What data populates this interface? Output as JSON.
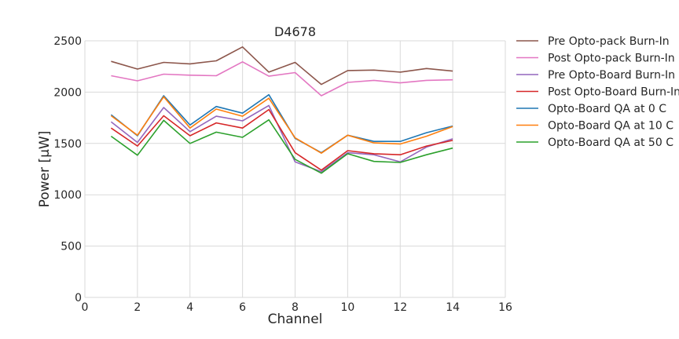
{
  "chart_data": {
    "type": "line",
    "title": "D4678",
    "xlabel": "Channel",
    "ylabel": "Power [μW]",
    "xlim": [
      0,
      16
    ],
    "ylim": [
      0,
      2500
    ],
    "xticks": [
      0,
      2,
      4,
      6,
      8,
      10,
      12,
      14,
      16
    ],
    "yticks": [
      0,
      500,
      1000,
      1500,
      2000,
      2500
    ],
    "grid": true,
    "legend_position": "outside-right-top",
    "x": [
      1,
      2,
      3,
      4,
      5,
      6,
      7,
      8,
      9,
      10,
      11,
      12,
      13,
      14
    ],
    "series": [
      {
        "name": "Pre Opto-pack Burn-In",
        "color": "#8c564b",
        "values": [
          2300,
          2225,
          2290,
          2275,
          2305,
          2440,
          2195,
          2290,
          2075,
          2210,
          2215,
          2195,
          2230,
          2205
        ]
      },
      {
        "name": "Post Opto-pack Burn-In",
        "color": "#e377c2",
        "values": [
          2160,
          2110,
          2175,
          2165,
          2160,
          2295,
          2155,
          2190,
          1965,
          2095,
          2115,
          2090,
          2115,
          2120
        ]
      },
      {
        "name": "Pre Opto-Board Burn-In",
        "color": "#9467bd",
        "values": [
          1710,
          1510,
          1850,
          1615,
          1765,
          1720,
          1870,
          1320,
          1225,
          1410,
          1390,
          1320,
          1465,
          1545
        ]
      },
      {
        "name": "Post Opto-Board Burn-In",
        "color": "#d62728",
        "values": [
          1650,
          1475,
          1770,
          1575,
          1700,
          1650,
          1830,
          1410,
          1240,
          1430,
          1400,
          1390,
          1475,
          1530
        ]
      },
      {
        "name": "Opto-Board QA at 0 C",
        "color": "#1f77b4",
        "values": [
          1780,
          1575,
          1965,
          1680,
          1860,
          1795,
          1975,
          1550,
          1410,
          1580,
          1520,
          1520,
          1605,
          1670
        ]
      },
      {
        "name": "Opto-Board QA at 10 C",
        "color": "#ff7f0e",
        "values": [
          1770,
          1580,
          1955,
          1650,
          1835,
          1765,
          1940,
          1555,
          1405,
          1580,
          1505,
          1495,
          1570,
          1665
        ]
      },
      {
        "name": "Opto-Board QA at 50 C",
        "color": "#2ca02c",
        "values": [
          1570,
          1385,
          1725,
          1500,
          1610,
          1560,
          1730,
          1345,
          1210,
          1400,
          1325,
          1315,
          1390,
          1455
        ]
      }
    ]
  }
}
